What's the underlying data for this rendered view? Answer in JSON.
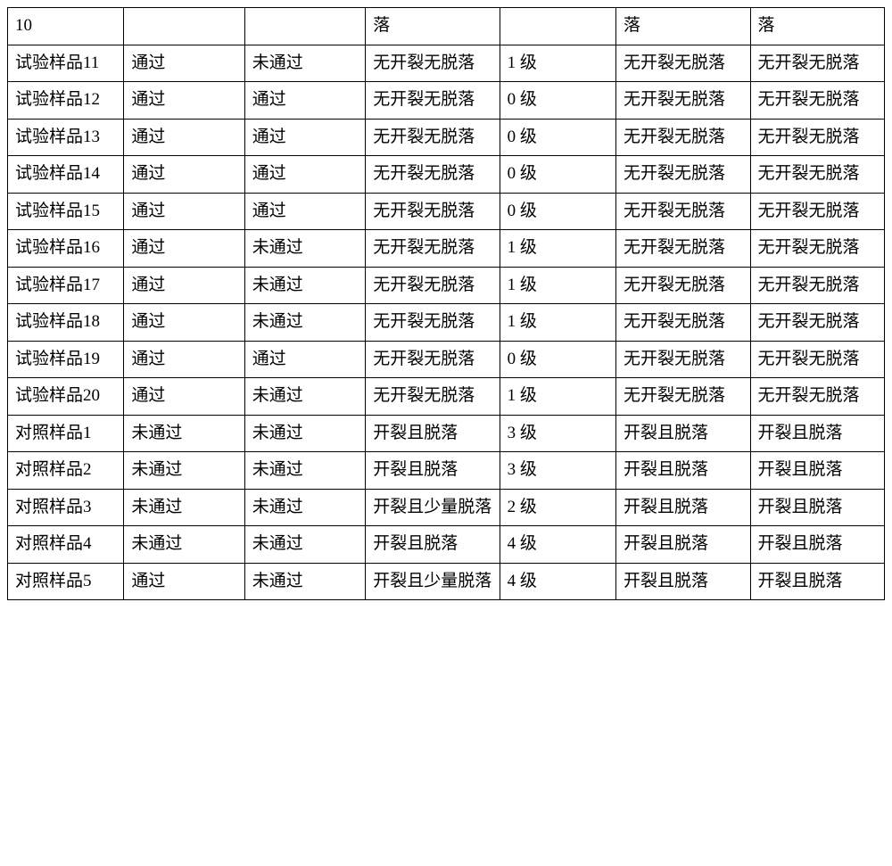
{
  "table": {
    "columns": [
      {
        "class": "col0"
      },
      {
        "class": "col1"
      },
      {
        "class": "col2"
      },
      {
        "class": "col3"
      },
      {
        "class": "col4"
      },
      {
        "class": "col5"
      },
      {
        "class": "col6"
      }
    ],
    "rows": [
      [
        "10",
        "",
        "",
        "落",
        "",
        "落",
        "落"
      ],
      [
        "试验样品11",
        "通过",
        "未通过",
        "无开裂无脱落",
        "1 级",
        "无开裂无脱落",
        "无开裂无脱落"
      ],
      [
        "试验样品12",
        "通过",
        "通过",
        "无开裂无脱落",
        "0 级",
        "无开裂无脱落",
        "无开裂无脱落"
      ],
      [
        "试验样品13",
        "通过",
        "通过",
        "无开裂无脱落",
        "0 级",
        "无开裂无脱落",
        "无开裂无脱落"
      ],
      [
        "试验样品14",
        "通过",
        "通过",
        "无开裂无脱落",
        "0 级",
        "无开裂无脱落",
        "无开裂无脱落"
      ],
      [
        "试验样品15",
        "通过",
        "通过",
        "无开裂无脱落",
        "0 级",
        "无开裂无脱落",
        "无开裂无脱落"
      ],
      [
        "试验样品16",
        "通过",
        "未通过",
        "无开裂无脱落",
        "1 级",
        "无开裂无脱落",
        "无开裂无脱落"
      ],
      [
        "试验样品17",
        "通过",
        "未通过",
        "无开裂无脱落",
        "1 级",
        "无开裂无脱落",
        "无开裂无脱落"
      ],
      [
        "试验样品18",
        "通过",
        "未通过",
        "无开裂无脱落",
        "1 级",
        "无开裂无脱落",
        "无开裂无脱落"
      ],
      [
        "试验样品19",
        "通过",
        "通过",
        "无开裂无脱落",
        "0 级",
        "无开裂无脱落",
        "无开裂无脱落"
      ],
      [
        "试验样品20",
        "通过",
        "未通过",
        "无开裂无脱落",
        "1 级",
        "无开裂无脱落",
        "无开裂无脱落"
      ],
      [
        "对照样品1",
        "未通过",
        "未通过",
        "开裂且脱落",
        "3 级",
        "开裂且脱落",
        "开裂且脱落"
      ],
      [
        "对照样品2",
        "未通过",
        "未通过",
        "开裂且脱落",
        "3 级",
        "开裂且脱落",
        "开裂且脱落"
      ],
      [
        "对照样品3",
        "未通过",
        "未通过",
        "开裂且少量脱落",
        "2 级",
        "开裂且脱落",
        "开裂且脱落"
      ],
      [
        "对照样品4",
        "未通过",
        "未通过",
        "开裂且脱落",
        "4 级",
        "开裂且脱落",
        "开裂且脱落"
      ],
      [
        "对照样品5",
        "通过",
        "未通过",
        "开裂且少量脱落",
        "4 级",
        "开裂且脱落",
        "开裂且脱落"
      ]
    ],
    "border_color": "#000000",
    "background_color": "#ffffff",
    "font_size": 19,
    "text_color": "#000000"
  }
}
